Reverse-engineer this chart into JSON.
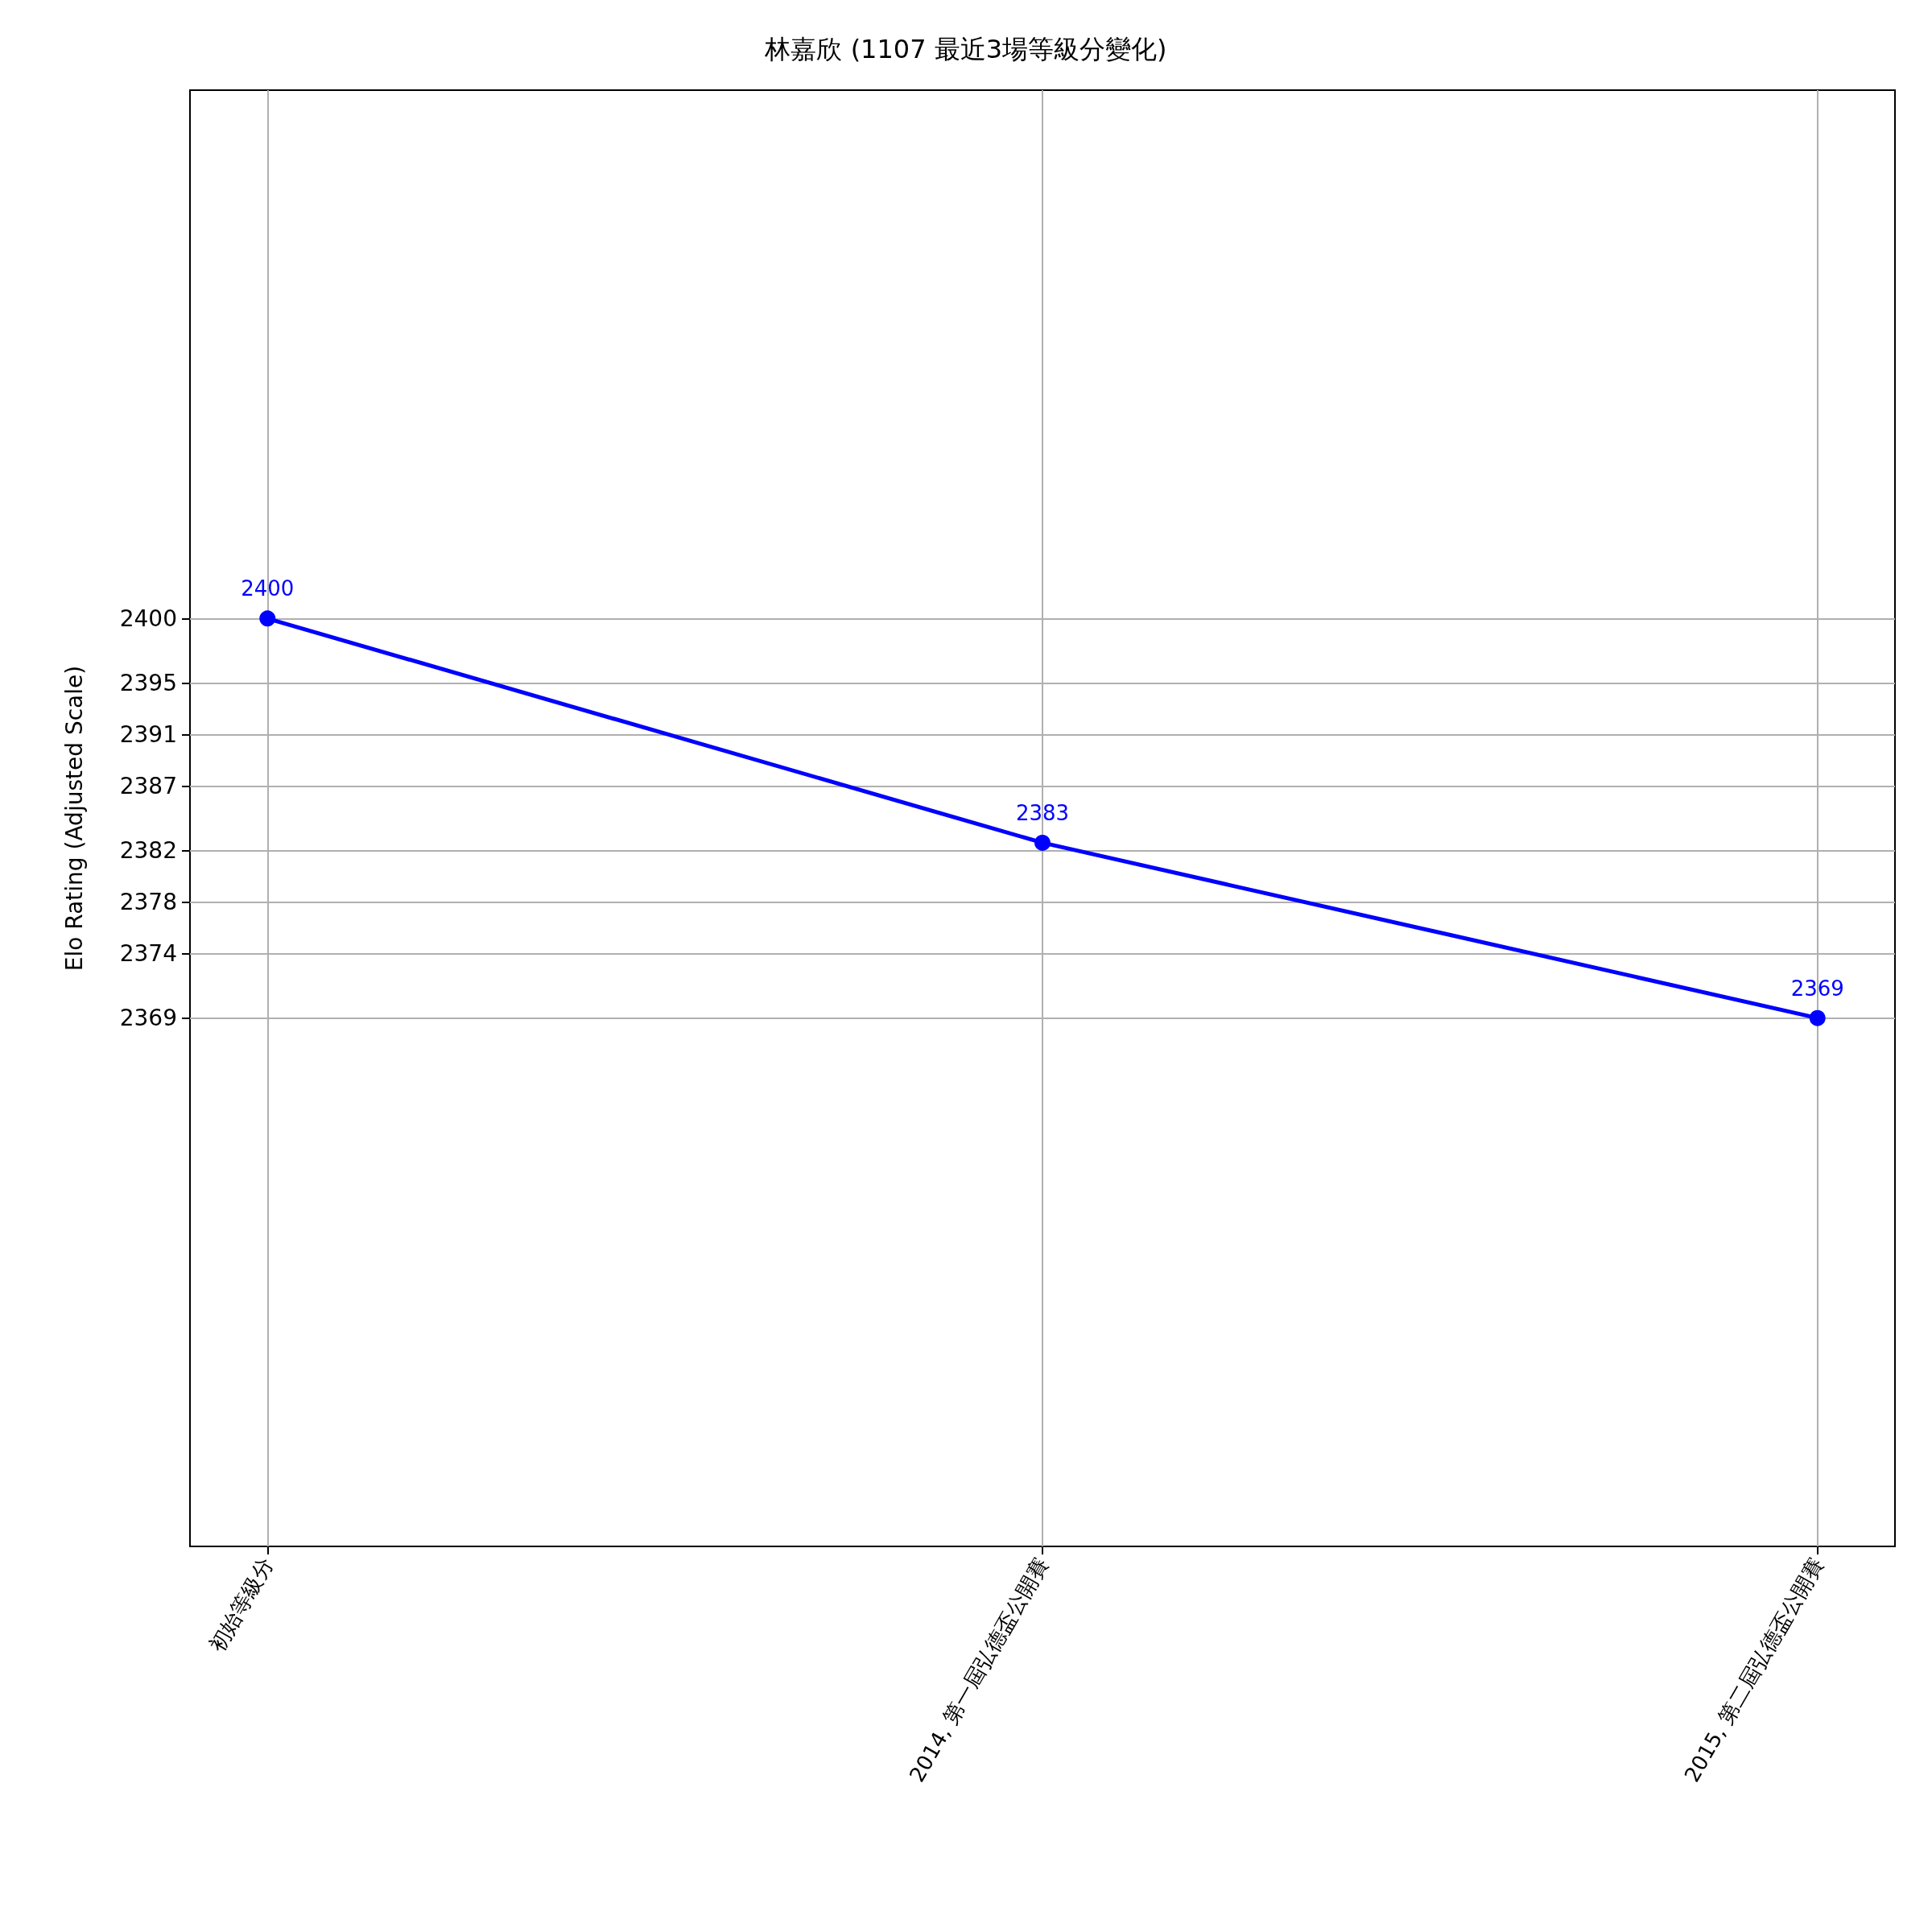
{
  "chart_data": {
    "type": "line",
    "title": "林嘉欣 (1107 最近3場等級分變化)",
    "ylabel": "Elo Rating (Adjusted Scale)",
    "categories": [
      "初始等級分",
      "2014, 第一屆弘德盃公開賽",
      "2015, 第二屆弘德盃公開賽"
    ],
    "series": [
      {
        "color": "#0000ff",
        "values": [
          2400,
          2382.6,
          2369
        ],
        "value_labels": [
          "2400",
          "2383",
          "2369"
        ]
      }
    ],
    "ylim": [
      2328,
      2441
    ],
    "yticks": [
      2369,
      2374,
      2378,
      2382,
      2387,
      2391,
      2395,
      2400
    ],
    "grid": true,
    "marker": "circle",
    "line_style": "solid"
  }
}
